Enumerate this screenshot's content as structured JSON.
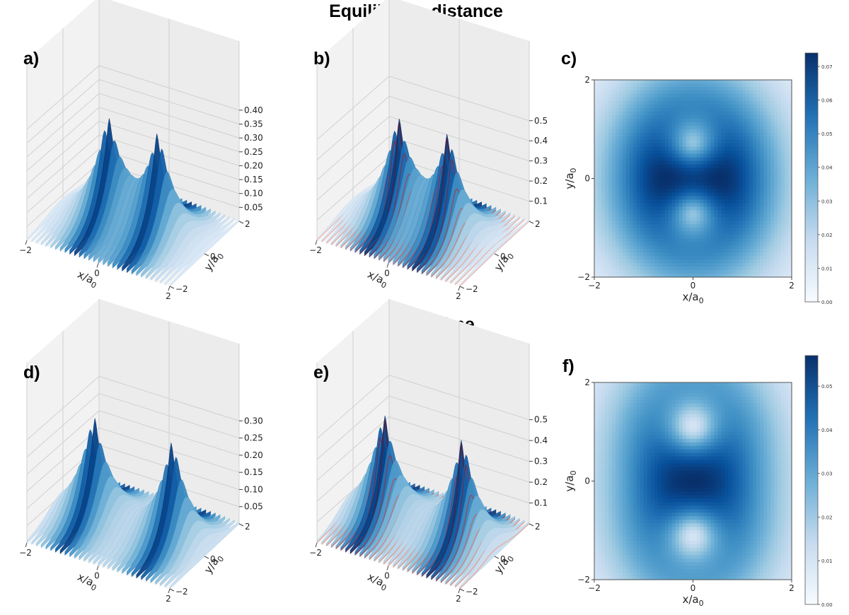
{
  "figure": {
    "title_top": "Equilibrium distance",
    "title_bottom": "Mott regime"
  },
  "colors": {
    "blues_dark": "#08306b",
    "blues_mid": "#2171b5",
    "blues_light": "#deebf7",
    "reds": "#cb181d",
    "pane": "#f2f2f2",
    "grid": "#d0d0d0"
  },
  "chart_data": [
    {
      "panel_label": "a)",
      "type": "surface3d",
      "colormap": "Blues",
      "xlabel": "x/a",
      "xlabel_sub": "0",
      "ylabel": "y/a",
      "ylabel_sub": "0",
      "x_ticks": [
        "−2",
        "0",
        "2"
      ],
      "y_ticks": [
        "−2",
        "0",
        "2"
      ],
      "z_ticks": [
        "0.05",
        "0.10",
        "0.15",
        "0.20",
        "0.25",
        "0.30",
        "0.35",
        "0.40"
      ],
      "zlim": [
        0,
        0.42
      ],
      "nuclei_y": [
        -0.7,
        0.7
      ],
      "peak": 0.4,
      "overlay": false
    },
    {
      "panel_label": "b)",
      "type": "surface3d",
      "colormap": "Blues + Reds overlay",
      "xlabel": "x/a",
      "xlabel_sub": "0",
      "ylabel": "y/a",
      "ylabel_sub": "0",
      "x_ticks": [
        "−2",
        "0",
        "2"
      ],
      "y_ticks": [
        "−2",
        "0",
        "2"
      ],
      "z_ticks": [
        "0.1",
        "0.2",
        "0.3",
        "0.4",
        "0.5"
      ],
      "zlim": [
        0,
        0.58
      ],
      "nuclei_y": [
        -0.7,
        0.7
      ],
      "peak": 0.55,
      "overlay": true
    },
    {
      "panel_label": "c)",
      "type": "heatmap",
      "colormap": "Blues",
      "xlabel": "x/a",
      "xlabel_sub": "0",
      "ylabel": "y/a",
      "ylabel_sub": "0",
      "x_ticks": [
        "−2",
        "0",
        "2"
      ],
      "y_ticks": [
        "−2",
        "0",
        "2"
      ],
      "xlim": [
        -2,
        2
      ],
      "ylim": [
        -2,
        2
      ],
      "nuclei_y": [
        -0.7,
        0.7
      ],
      "colorbar_ticks": [
        "0.00",
        "0.01",
        "0.02",
        "0.03",
        "0.04",
        "0.05",
        "0.06",
        "0.07"
      ],
      "colorbar_range": [
        0,
        0.074
      ]
    },
    {
      "panel_label": "d)",
      "type": "surface3d",
      "colormap": "Blues",
      "xlabel": "x/a",
      "xlabel_sub": "0",
      "ylabel": "y/a",
      "ylabel_sub": "0",
      "x_ticks": [
        "−2",
        "0",
        "2"
      ],
      "y_ticks": [
        "−2",
        "0",
        "2"
      ],
      "z_ticks": [
        "0.05",
        "0.10",
        "0.15",
        "0.20",
        "0.25",
        "0.30"
      ],
      "zlim": [
        0,
        0.34
      ],
      "nuclei_y": [
        -1.1,
        1.1
      ],
      "peak": 0.32,
      "overlay": false
    },
    {
      "panel_label": "e)",
      "type": "surface3d",
      "colormap": "Blues + Reds overlay",
      "xlabel": "x/a",
      "xlabel_sub": "0",
      "ylabel": "y/a",
      "ylabel_sub": "0",
      "x_ticks": [
        "−2",
        "0",
        "2"
      ],
      "y_ticks": [
        "−2",
        "0",
        "2"
      ],
      "z_ticks": [
        "0.1",
        "0.2",
        "0.3",
        "0.4",
        "0.5"
      ],
      "zlim": [
        0,
        0.56
      ],
      "nuclei_y": [
        -1.1,
        1.1
      ],
      "peak": 0.54,
      "overlay": true
    },
    {
      "panel_label": "f)",
      "type": "heatmap",
      "colormap": "Blues",
      "xlabel": "x/a",
      "xlabel_sub": "0",
      "ylabel": "y/a",
      "ylabel_sub": "0",
      "x_ticks": [
        "−2",
        "0",
        "2"
      ],
      "y_ticks": [
        "−2",
        "0",
        "2"
      ],
      "xlim": [
        -2,
        2
      ],
      "ylim": [
        -2,
        2
      ],
      "nuclei_y": [
        -1.1,
        1.1
      ],
      "colorbar_ticks": [
        "0.00",
        "0.01",
        "0.02",
        "0.03",
        "0.04",
        "0.05"
      ],
      "colorbar_range": [
        0,
        0.057
      ]
    }
  ]
}
